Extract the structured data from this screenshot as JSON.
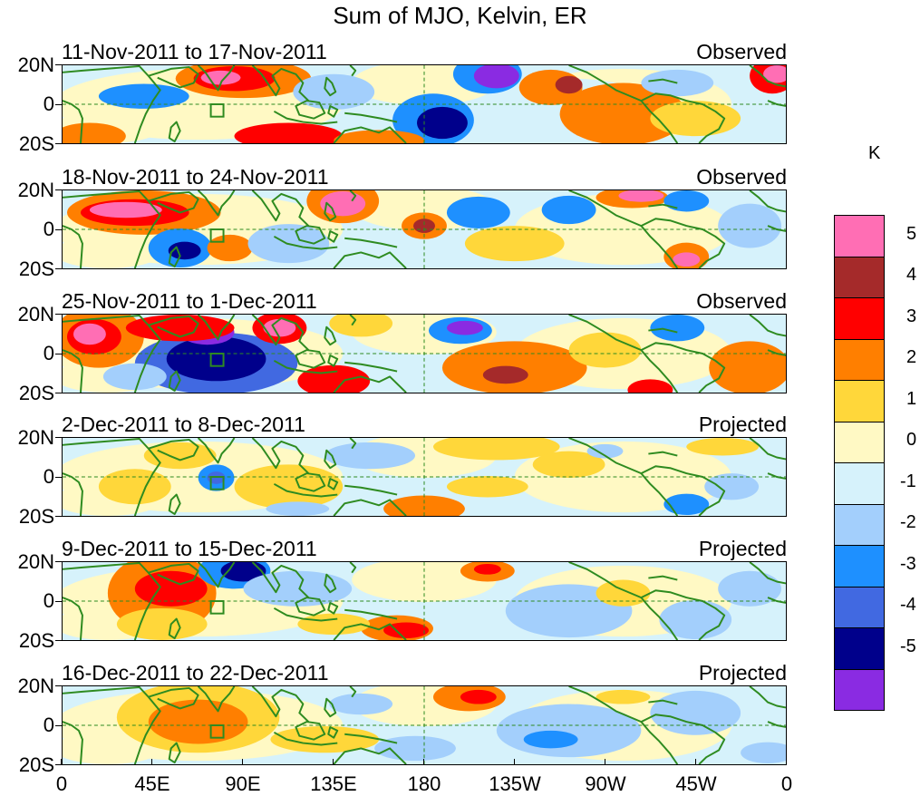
{
  "title": "Sum of MJO, Kelvin, ER",
  "units": "K",
  "y_ticks": [
    "20N",
    "0",
    "20S"
  ],
  "x_ticks": [
    "0",
    "45E",
    "90E",
    "135E",
    "180",
    "135W",
    "90W",
    "45W",
    "0"
  ],
  "panels": [
    {
      "date_range": "11-Nov-2011 to 17-Nov-2011",
      "status": "Observed"
    },
    {
      "date_range": "18-Nov-2011 to 24-Nov-2011",
      "status": "Observed"
    },
    {
      "date_range": "25-Nov-2011 to 1-Dec-2011",
      "status": "Observed"
    },
    {
      "date_range": "2-Dec-2011 to 8-Dec-2011",
      "status": "Projected"
    },
    {
      "date_range": "9-Dec-2011 to 15-Dec-2011",
      "status": "Projected"
    },
    {
      "date_range": "16-Dec-2011 to 22-Dec-2011",
      "status": "Projected"
    }
  ],
  "colorbar": {
    "labels": [
      "5",
      "4",
      "3",
      "2",
      "1",
      "0",
      "-1",
      "-2",
      "-3",
      "-4",
      "-5"
    ],
    "colors": [
      "#ff6eb4",
      "#a52a2a",
      "#ff0000",
      "#ff7f00",
      "#ffd73a",
      "#fff9c4",
      "#d6f2fb",
      "#a3cffc",
      "#1e90ff",
      "#4169e1",
      "#00008b",
      "#8a2be2"
    ]
  },
  "palette": {
    "coast": "#2e8b20",
    "box": "#2e8b20",
    "dashed": "#2e8b20"
  }
}
